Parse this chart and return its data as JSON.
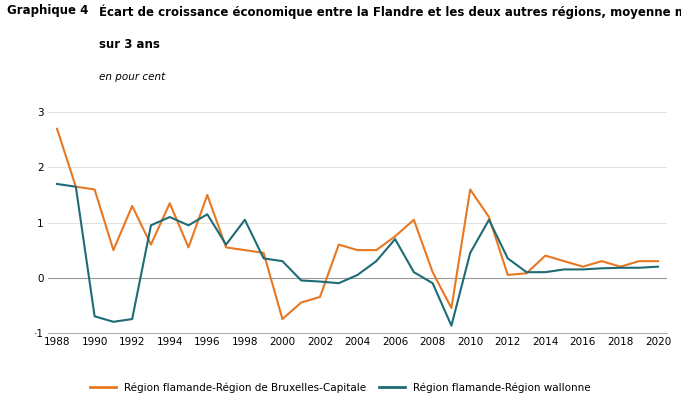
{
  "title_label": "Graphique 4",
  "title_line1": "Écart de croissance économique entre la Flandre et les deux autres régions, moyenne mobile centrée",
  "title_line2": "sur 3 ans",
  "title_sub": "en pour cent",
  "years": [
    1988,
    1989,
    1990,
    1991,
    1992,
    1993,
    1994,
    1995,
    1996,
    1997,
    1998,
    1999,
    2000,
    2001,
    2002,
    2003,
    2004,
    2005,
    2006,
    2007,
    2008,
    2009,
    2010,
    2011,
    2012,
    2013,
    2014,
    2015,
    2016,
    2017,
    2018,
    2019,
    2020
  ],
  "bruxelles": [
    2.7,
    1.65,
    1.6,
    0.5,
    1.3,
    0.6,
    1.35,
    0.55,
    1.5,
    0.55,
    0.5,
    0.45,
    -0.75,
    -0.45,
    -0.35,
    0.6,
    0.5,
    0.5,
    0.75,
    1.05,
    0.1,
    -0.55,
    1.6,
    1.1,
    0.05,
    0.08,
    0.4,
    0.3,
    0.2,
    0.3,
    0.2,
    0.3,
    0.3
  ],
  "wallonne": [
    1.7,
    1.65,
    -0.7,
    -0.8,
    -0.75,
    0.95,
    1.1,
    0.95,
    1.15,
    0.6,
    1.05,
    0.35,
    0.3,
    -0.05,
    -0.07,
    -0.1,
    0.05,
    0.3,
    0.7,
    0.1,
    -0.1,
    -0.87,
    0.45,
    1.05,
    0.35,
    0.1,
    0.1,
    0.15,
    0.15,
    0.17,
    0.18,
    0.18,
    0.2
  ],
  "bruxelles_color": "#E87722",
  "wallonne_color": "#1F6B75",
  "ylim": [
    -1.0,
    3.0
  ],
  "yticks": [
    -1,
    0,
    1,
    2,
    3
  ],
  "xlim": [
    1987.5,
    2020.5
  ],
  "xticks": [
    1988,
    1990,
    1992,
    1994,
    1996,
    1998,
    2000,
    2002,
    2004,
    2006,
    2008,
    2010,
    2012,
    2014,
    2016,
    2018,
    2020
  ],
  "legend_bruxelles": "Région flamande-Région de Bruxelles-Capitale",
  "legend_wallonne": "Région flamande-Région wallonne",
  "line_width": 1.5,
  "bg_color": "#FFFFFF",
  "grid_color": "#DDDDDD",
  "zero_line_color": "#999999"
}
